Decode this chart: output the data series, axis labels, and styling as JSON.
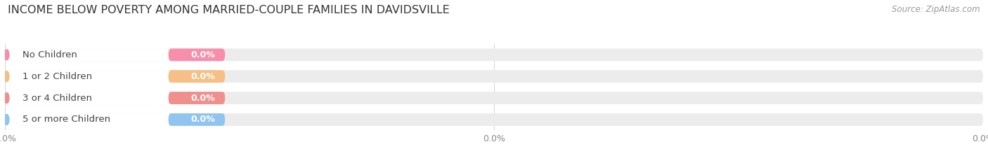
{
  "title": "INCOME BELOW POVERTY AMONG MARRIED-COUPLE FAMILIES IN DAVIDSVILLE",
  "source": "Source: ZipAtlas.com",
  "categories": [
    "No Children",
    "1 or 2 Children",
    "3 or 4 Children",
    "5 or more Children"
  ],
  "values": [
    0.0,
    0.0,
    0.0,
    0.0
  ],
  "bar_colors": [
    "#f78fac",
    "#f5bf85",
    "#f0908e",
    "#91c4f0"
  ],
  "background_color": "#ffffff",
  "bar_bg_color": "#ececec",
  "title_fontsize": 11.5,
  "label_fontsize": 9.5,
  "value_fontsize": 9,
  "source_fontsize": 8.5,
  "tick_fontsize": 9,
  "figsize": [
    14.06,
    2.33
  ],
  "dpi": 100,
  "grid_color": "#cccccc",
  "tick_color": "#888888"
}
